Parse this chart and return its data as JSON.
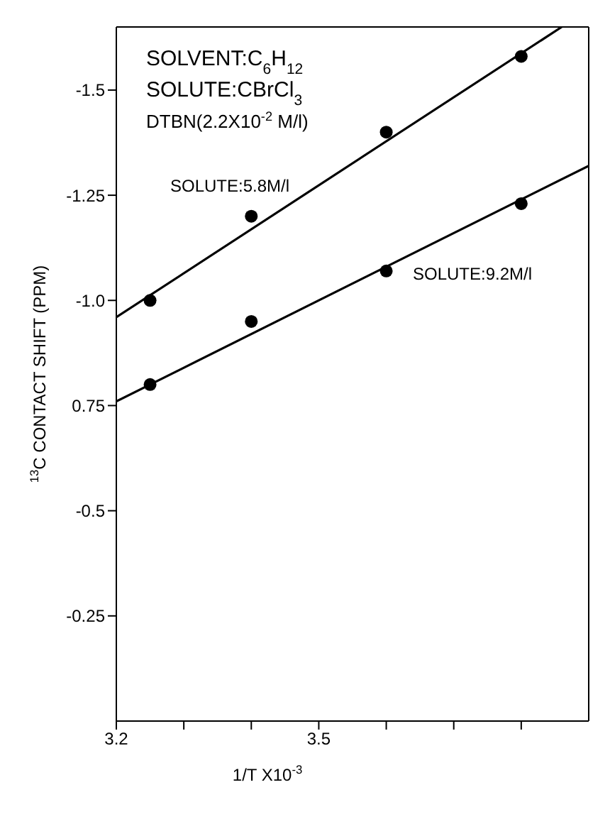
{
  "chart_data": {
    "type": "scatter",
    "xlabel": "1/T X10$^{-3}$",
    "ylabel": "$^{13}$C CONTACT SHIFT (PPM)",
    "xlim": [
      3.2,
      3.9
    ],
    "ylim": [
      0,
      -1.65
    ],
    "xticks": [
      3.2,
      {
        "value": 3.3,
        "label": null
      },
      {
        "value": 3.4,
        "label": null
      },
      3.5,
      {
        "value": 3.6,
        "label": null
      },
      {
        "value": 3.7,
        "label": null
      },
      {
        "value": 3.8,
        "label": null
      }
    ],
    "yticks": [
      -0.25,
      -0.5,
      {
        "value": -0.75,
        "label": "0.75"
      },
      {
        "value": -1.0,
        "label": "-1.0"
      },
      -1.25,
      -1.5
    ],
    "series": [
      {
        "color": "#000000",
        "marker": "circle",
        "x": [
          3.25,
          3.4,
          3.6,
          3.8
        ],
        "values": [
          -1.0,
          -1.2,
          -1.4,
          -1.58
        ]
      },
      {
        "color": "#000000",
        "marker": "circle",
        "x": [
          3.25,
          3.4,
          3.6,
          3.8
        ],
        "values": [
          -0.8,
          -0.95,
          -1.07,
          -1.23
        ]
      },
      {
        "type": "line",
        "color": "#000000",
        "marker": "none",
        "x": [
          3.2,
          3.86
        ],
        "values": [
          -0.96,
          -1.65
        ]
      },
      {
        "type": "line",
        "color": "#000000",
        "marker": "none",
        "x": [
          3.2,
          3.9
        ],
        "values": [
          -0.76,
          -1.32
        ]
      }
    ],
    "annotations": [
      "SOLVENT:C$_{6}$H$_{12}$",
      "SOLUTE:CBrCl$_{3}$",
      "DTBN(2.2X10$^{-2}$ M/l)",
      "SOLUTE:5.8M/l",
      "SOLUTE:9.2M/l"
    ]
  }
}
